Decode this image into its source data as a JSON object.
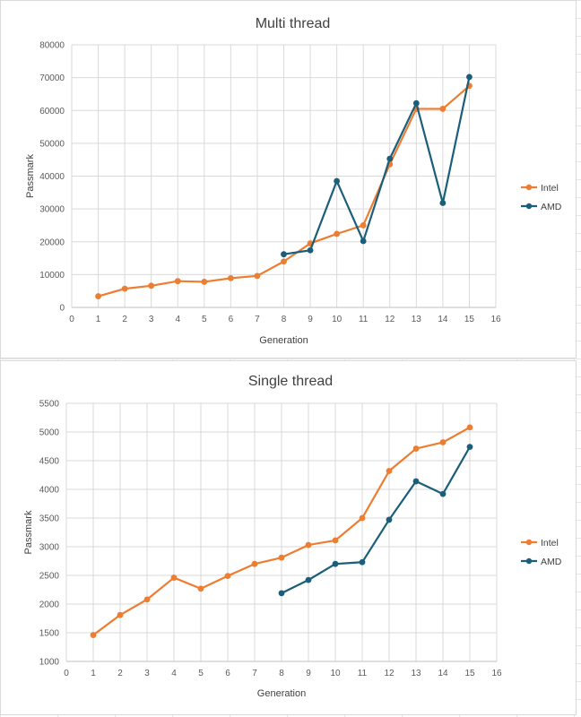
{
  "colors": {
    "intel": "#ED7D31",
    "amd": "#1B5E7A",
    "grid": "#D9D9D9",
    "axis": "#BFBFBF"
  },
  "chart_data": [
    {
      "type": "line",
      "title": "Multi thread",
      "xlabel": "Generation",
      "ylabel": "Passmark",
      "xlim": [
        0,
        16
      ],
      "xticks": [
        0,
        1,
        2,
        3,
        4,
        5,
        6,
        7,
        8,
        9,
        10,
        11,
        12,
        13,
        14,
        15,
        16
      ],
      "ylim": [
        0,
        80000
      ],
      "yticks": [
        0,
        10000,
        20000,
        30000,
        40000,
        50000,
        60000,
        70000,
        80000
      ],
      "grid": true,
      "legend": "right",
      "series": [
        {
          "name": "Intel",
          "color": "#ED7D31",
          "x": [
            1,
            2,
            3,
            4,
            5,
            6,
            7,
            8,
            9,
            10,
            11,
            12,
            13,
            14,
            15
          ],
          "y": [
            3400,
            5700,
            6600,
            8000,
            7800,
            8900,
            9600,
            14000,
            19500,
            22400,
            25000,
            43600,
            60500,
            60500,
            67500
          ]
        },
        {
          "name": "AMD",
          "color": "#1B5E7A",
          "x": [
            8,
            9,
            10,
            11,
            12,
            13,
            14,
            15
          ],
          "y": [
            16200,
            17400,
            38500,
            20200,
            45300,
            62200,
            31800,
            70200
          ]
        }
      ]
    },
    {
      "type": "line",
      "title": "Single thread",
      "xlabel": "Generation",
      "ylabel": "Passmark",
      "xlim": [
        0,
        16
      ],
      "xticks": [
        0,
        1,
        2,
        3,
        4,
        5,
        6,
        7,
        8,
        9,
        10,
        11,
        12,
        13,
        14,
        15,
        16
      ],
      "ylim": [
        1000,
        5500
      ],
      "yticks": [
        1000,
        1500,
        2000,
        2500,
        3000,
        3500,
        4000,
        4500,
        5000,
        5500
      ],
      "grid": true,
      "legend": "right",
      "series": [
        {
          "name": "Intel",
          "color": "#ED7D31",
          "x": [
            1,
            2,
            3,
            4,
            5,
            6,
            7,
            8,
            9,
            10,
            11,
            12,
            13,
            14,
            15
          ],
          "y": [
            1460,
            1810,
            2080,
            2460,
            2270,
            2490,
            2700,
            2810,
            3030,
            3110,
            3500,
            4320,
            4710,
            4820,
            5080
          ]
        },
        {
          "name": "AMD",
          "color": "#1B5E7A",
          "x": [
            8,
            9,
            10,
            11,
            12,
            13,
            14,
            15
          ],
          "y": [
            2190,
            2420,
            2700,
            2730,
            3470,
            4140,
            3920,
            4740
          ]
        }
      ]
    }
  ]
}
